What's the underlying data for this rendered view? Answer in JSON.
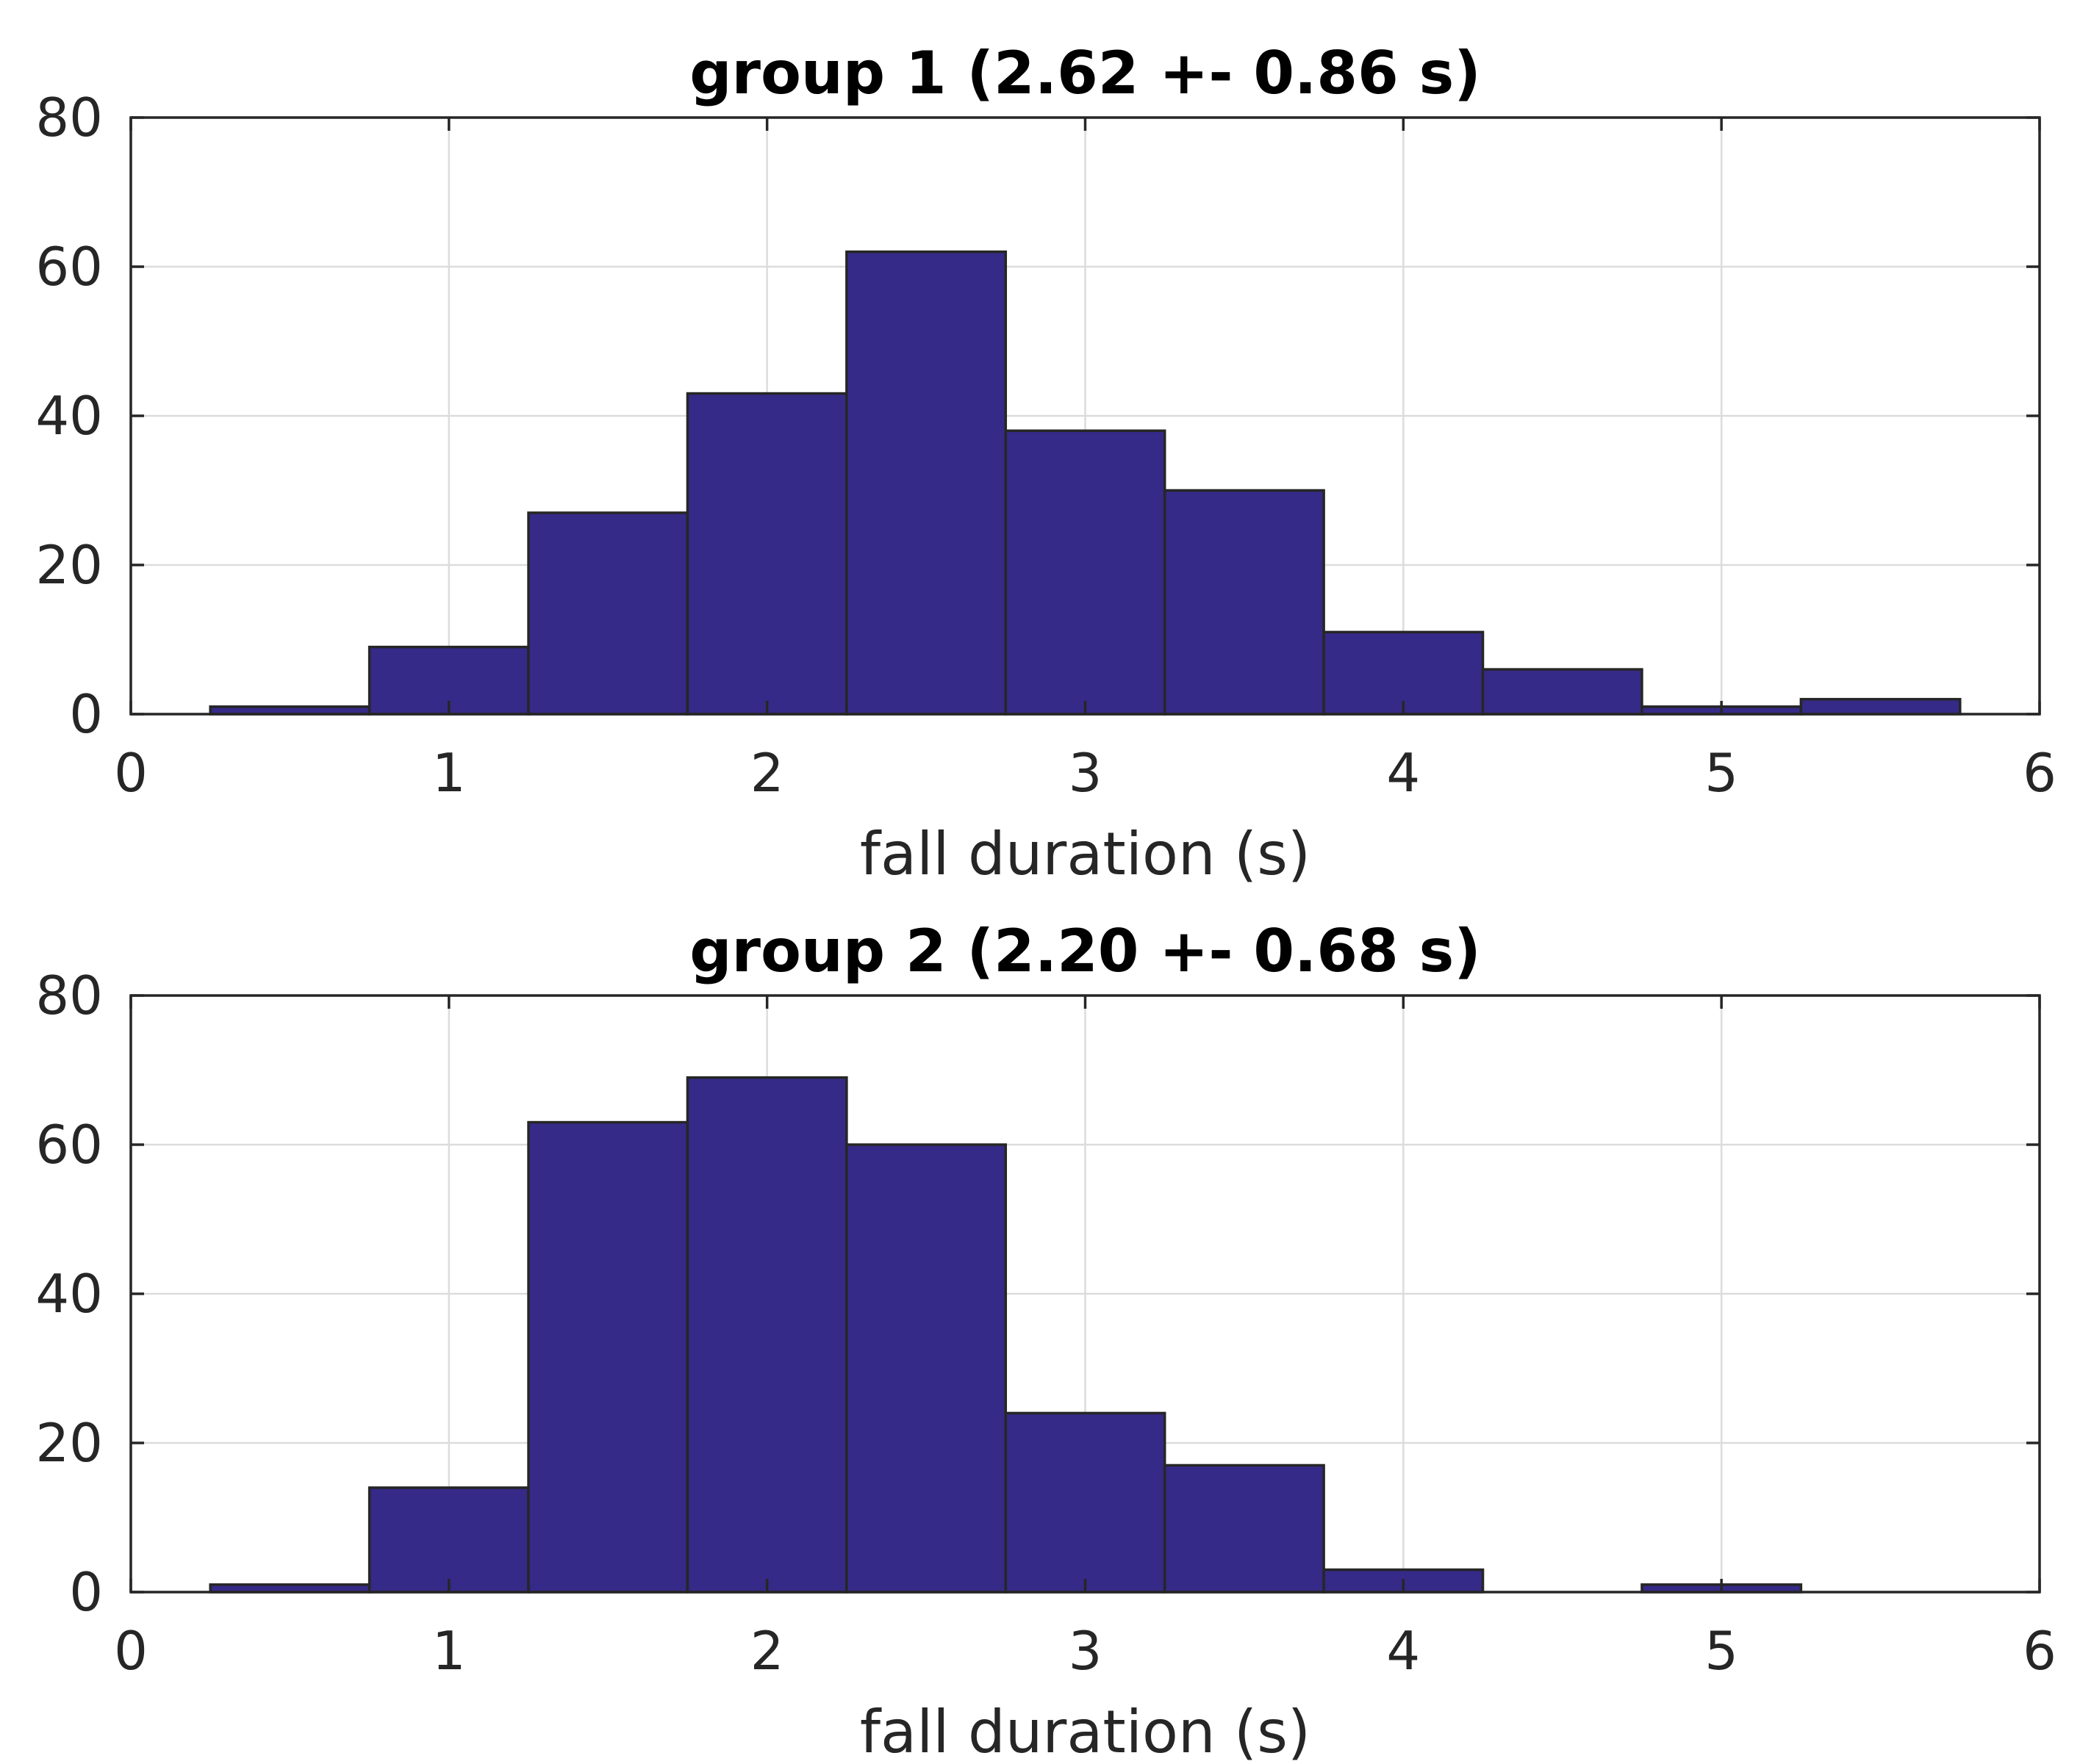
{
  "chart_data": [
    {
      "type": "bar",
      "title": "group 1 (2.62 +- 0.86 s)",
      "xlabel": "fall duration (s)",
      "ylabel": "",
      "xlim": [
        0,
        6
      ],
      "ylim": [
        0,
        80
      ],
      "xticks": [
        "0",
        "1",
        "2",
        "3",
        "4",
        "5",
        "6"
      ],
      "yticks": [
        "0",
        "20",
        "40",
        "60",
        "80"
      ],
      "grid": true,
      "bin_edges": [
        0.25,
        0.75,
        1.25,
        1.75,
        2.25,
        2.75,
        3.25,
        3.75,
        4.25,
        4.75,
        5.25,
        5.75
      ],
      "values": [
        1,
        9,
        27,
        43,
        62,
        38,
        30,
        11,
        6,
        1,
        2
      ],
      "bar_color": "#352a87"
    },
    {
      "type": "bar",
      "title": "group 2 (2.20 +- 0.68 s)",
      "xlabel": "fall duration (s)",
      "ylabel": "",
      "xlim": [
        0,
        6
      ],
      "ylim": [
        0,
        80
      ],
      "xticks": [
        "0",
        "1",
        "2",
        "3",
        "4",
        "5",
        "6"
      ],
      "yticks": [
        "0",
        "20",
        "40",
        "60",
        "80"
      ],
      "grid": true,
      "bin_edges": [
        0.25,
        0.75,
        1.25,
        1.75,
        2.25,
        2.75,
        3.25,
        3.75,
        4.25,
        4.75,
        5.25,
        5.75
      ],
      "values": [
        1,
        14,
        63,
        69,
        60,
        24,
        17,
        3,
        0,
        1,
        0
      ],
      "bar_color": "#352a87"
    }
  ]
}
